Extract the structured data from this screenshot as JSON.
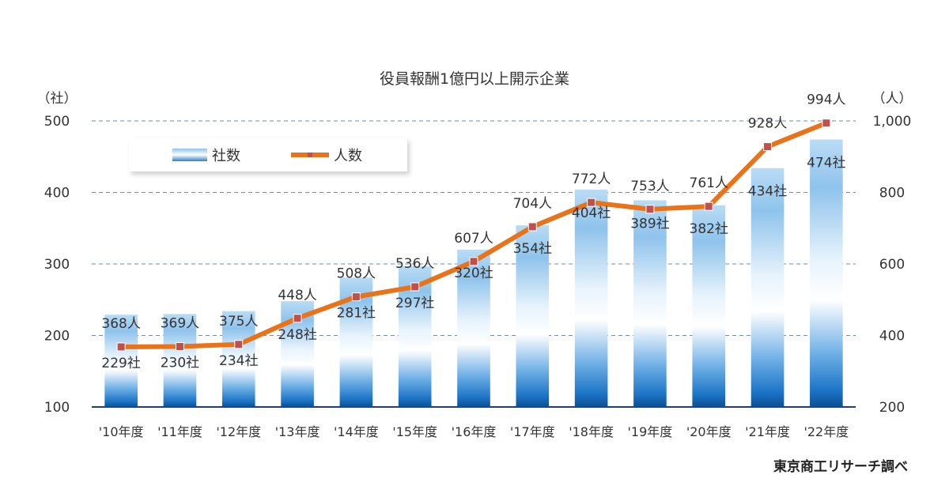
{
  "chart_data": {
    "type": "bar",
    "title": "役員報酬1億円以上開示企業",
    "categories": [
      "'10年度",
      "'11年度",
      "'12年度",
      "'13年度",
      "'14年度",
      "'15年度",
      "'16年度",
      "'17年度",
      "'18年度",
      "'19年度",
      "'20年度",
      "'21年度",
      "'22年度"
    ],
    "series": [
      {
        "name": "社数",
        "type": "bar",
        "axis": "left",
        "values": [
          229,
          230,
          234,
          248,
          281,
          297,
          320,
          354,
          404,
          389,
          382,
          434,
          474
        ],
        "labels": [
          "229社",
          "230社",
          "234社",
          "248社",
          "281社",
          "297社",
          "320社",
          "354社",
          "404社",
          "389社",
          "382社",
          "434社",
          "474社"
        ]
      },
      {
        "name": "人数",
        "type": "line",
        "axis": "right",
        "values": [
          368,
          369,
          375,
          448,
          508,
          536,
          607,
          704,
          772,
          753,
          761,
          928,
          994
        ],
        "labels": [
          "368人",
          "369人",
          "375人",
          "448人",
          "508人",
          "536人",
          "607人",
          "704人",
          "772人",
          "753人",
          "761人",
          "928人",
          "994人"
        ]
      }
    ],
    "y_left": {
      "unit": "（社）",
      "ylim": [
        100,
        500
      ],
      "ticks": [
        "100",
        "200",
        "300",
        "400",
        "500"
      ]
    },
    "y_right": {
      "unit": "（人）",
      "ylim": [
        200,
        1000
      ],
      "ticks": [
        "200",
        "400",
        "600",
        "800",
        "1,000"
      ]
    },
    "grid": "dashed-horizontal",
    "legend_position": "top-left",
    "colors": {
      "bar": "#3b8fd4",
      "line": "#e8731a",
      "marker": "#c0504d",
      "grid": "#7a8aa0"
    },
    "source": "東京商工リサーチ調べ"
  }
}
